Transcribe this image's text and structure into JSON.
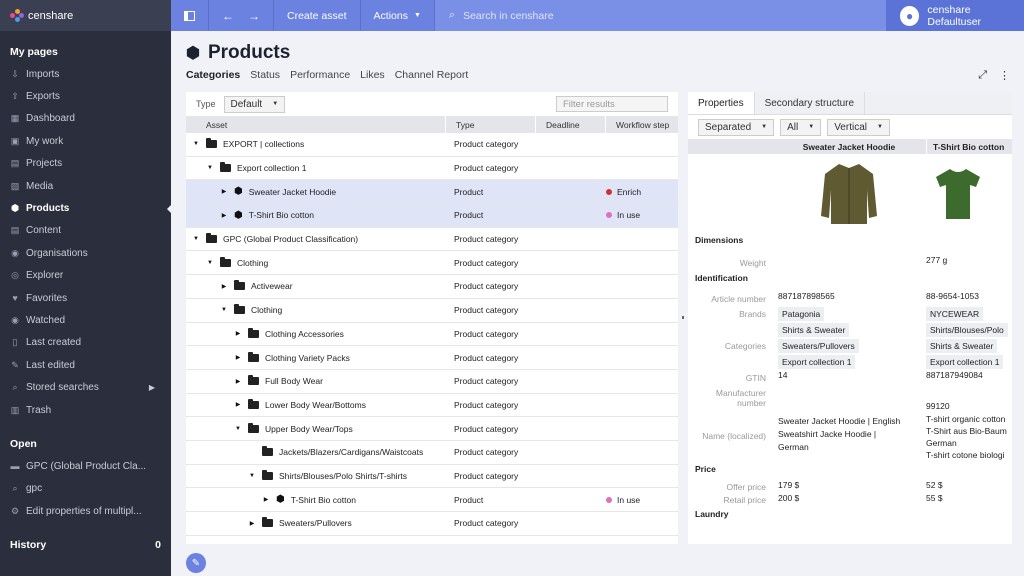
{
  "app": {
    "brand": "censhare"
  },
  "topbar": {
    "create": "Create asset",
    "actions": "Actions",
    "search_placeholder": "Search in censhare",
    "user": "censhare Defaultuser"
  },
  "sidebar": {
    "my_pages": "My pages",
    "items": [
      {
        "label": "Imports",
        "icon": "import-icon"
      },
      {
        "label": "Exports",
        "icon": "export-icon"
      },
      {
        "label": "Dashboard",
        "icon": "dashboard-icon"
      },
      {
        "label": "My work",
        "icon": "briefcase-icon"
      },
      {
        "label": "Projects",
        "icon": "projects-icon"
      },
      {
        "label": "Media",
        "icon": "media-icon"
      },
      {
        "label": "Products",
        "icon": "cube-icon",
        "active": true
      },
      {
        "label": "Content",
        "icon": "content-icon"
      },
      {
        "label": "Organisations",
        "icon": "organisation-icon"
      },
      {
        "label": "Explorer",
        "icon": "compass-icon"
      },
      {
        "label": "Favorites",
        "icon": "heart-icon"
      },
      {
        "label": "Watched",
        "icon": "eye-icon"
      },
      {
        "label": "Last created",
        "icon": "doc-icon"
      },
      {
        "label": "Last edited",
        "icon": "edit-icon"
      },
      {
        "label": "Stored searches",
        "icon": "search-icon"
      },
      {
        "label": "Trash",
        "icon": "trash-icon"
      }
    ],
    "open": "Open",
    "open_items": [
      {
        "label": "GPC (Global Product Cla...",
        "icon": "folder-icon"
      },
      {
        "label": "gpc",
        "icon": "search-icon"
      },
      {
        "label": "Edit properties of multipl...",
        "icon": "gear-icon"
      }
    ],
    "history": "History",
    "history_count": "0"
  },
  "page": {
    "title": "Products",
    "tabs": [
      "Categories",
      "Status",
      "Performance",
      "Likes",
      "Channel Report"
    ]
  },
  "left": {
    "type_label": "Type",
    "type_value": "Default",
    "filter_placeholder": "Filter results",
    "columns": [
      "Asset",
      "Type",
      "Deadline",
      "Workflow step"
    ],
    "rows": [
      {
        "name": "EXPORT | collections",
        "type": "Product category",
        "level": 0,
        "tw": "▼",
        "icon": "folder",
        "flow": "",
        "sel": false
      },
      {
        "name": "Export collection 1",
        "type": "Product category",
        "level": 1,
        "tw": "▼",
        "icon": "folder",
        "flow": "",
        "sel": false
      },
      {
        "name": "Sweater Jacket Hoodie",
        "type": "Product",
        "level": 2,
        "tw": "▶",
        "icon": "cube",
        "flow": "Enrich",
        "dot": "#d23030",
        "sel": true
      },
      {
        "name": "T-Shirt Bio cotton",
        "type": "Product",
        "level": 2,
        "tw": "▶",
        "icon": "cube",
        "flow": "In use",
        "dot": "#e070b8",
        "sel": true
      },
      {
        "name": "GPC (Global Product Classification)",
        "type": "Product category",
        "level": 0,
        "tw": "▼",
        "icon": "folder",
        "flow": "",
        "sel": false
      },
      {
        "name": "Clothing",
        "type": "Product category",
        "level": 1,
        "tw": "▼",
        "icon": "folder",
        "flow": "",
        "sel": false
      },
      {
        "name": "Activewear",
        "type": "Product category",
        "level": 2,
        "tw": "▶",
        "icon": "folder",
        "flow": "",
        "sel": false
      },
      {
        "name": "Clothing",
        "type": "Product category",
        "level": 2,
        "tw": "▼",
        "icon": "folder",
        "flow": "",
        "sel": false
      },
      {
        "name": "Clothing Accessories",
        "type": "Product category",
        "level": 3,
        "tw": "▶",
        "icon": "folder",
        "flow": "",
        "sel": false
      },
      {
        "name": "Clothing Variety Packs",
        "type": "Product category",
        "level": 3,
        "tw": "▶",
        "icon": "folder",
        "flow": "",
        "sel": false
      },
      {
        "name": "Full Body Wear",
        "type": "Product category",
        "level": 3,
        "tw": "▶",
        "icon": "folder",
        "flow": "",
        "sel": false
      },
      {
        "name": "Lower Body Wear/Bottoms",
        "type": "Product category",
        "level": 3,
        "tw": "▶",
        "icon": "folder",
        "flow": "",
        "sel": false
      },
      {
        "name": "Upper Body Wear/Tops",
        "type": "Product category",
        "level": 3,
        "tw": "▼",
        "icon": "folder",
        "flow": "",
        "sel": false
      },
      {
        "name": "Jackets/Blazers/Cardigans/Waistcoats",
        "type": "Product category",
        "level": 4,
        "tw": "",
        "icon": "folder",
        "flow": "",
        "sel": false
      },
      {
        "name": "Shirts/Blouses/Polo Shirts/T-shirts",
        "type": "Product category",
        "level": 4,
        "tw": "▼",
        "icon": "folder",
        "flow": "",
        "sel": false
      },
      {
        "name": "T-Shirt Bio cotton",
        "type": "Product",
        "level": 5,
        "tw": "▶",
        "icon": "cube",
        "flow": "In use",
        "dot": "#e070b8",
        "sel": false
      },
      {
        "name": "Sweaters/Pullovers",
        "type": "Product category",
        "level": 4,
        "tw": "▶",
        "icon": "folder",
        "flow": "",
        "sel": false
      }
    ]
  },
  "right": {
    "tabs": [
      "Properties",
      "Secondary structure"
    ],
    "filters": [
      "Separated",
      "All",
      "Vertical"
    ],
    "products": [
      "Sweater Jacket Hoodie",
      "T-Shirt Bio cotton"
    ],
    "colors": {
      "hoodie": "#5f5a32",
      "tshirt": "#3d6b2e"
    },
    "sections": {
      "dimensions": "Dimensions",
      "identification": "Identification",
      "price": "Price",
      "laundry": "Laundry"
    },
    "props": {
      "weight": {
        "label": "Weight",
        "v1": "",
        "v2": "277 g"
      },
      "article": {
        "label": "Article number",
        "v1": "887187898565",
        "v2": "88-9654-1053"
      },
      "brands": {
        "label": "Brands",
        "v1": "Patagonia",
        "v2": "NYCEWEAR"
      },
      "categories": {
        "label": "Categories",
        "v1": [
          "Shirts & Sweater",
          "Sweaters/Pullovers",
          "Export collection 1"
        ],
        "v2": [
          "Shirts/Blouses/Polo",
          "Shirts & Sweater",
          "Export collection 1"
        ]
      },
      "gtin": {
        "label": "GTIN",
        "v1": "14",
        "v2": "887187949084"
      },
      "manufacturer": {
        "label": "Manufacturer number",
        "v1": "",
        "v2": "99120"
      },
      "name_loc": {
        "label": "Name (localized)",
        "v1": [
          "Sweater Jacket Hoodie  |  English",
          "Sweatshirt Jacke Hoodie  |",
          "German"
        ],
        "v2": [
          "T-shirt organic cotton",
          "T-Shirt aus Bio-Baum",
          "German",
          "T-shirt cotone biologi"
        ]
      },
      "offer": {
        "label": "Offer price",
        "v1": "179 $",
        "v2": "52 $"
      },
      "retail": {
        "label": "Retail price",
        "v1": "200 $",
        "v2": "55 $"
      }
    }
  }
}
